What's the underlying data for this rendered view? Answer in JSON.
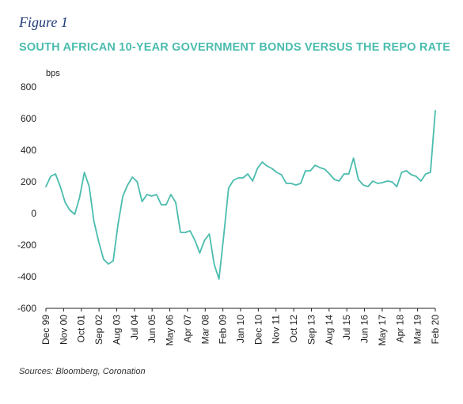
{
  "figure_label": "Figure 1",
  "source_note": "Sources: Bloomberg, Coronation",
  "colors": {
    "line": "#4bbcae",
    "title": "#4bbcae",
    "figure_label": "#1f3a7a",
    "axis": "#222222"
  },
  "chart_data": {
    "type": "line",
    "title": "SOUTH AFRICAN 10-YEAR GOVERNMENT BONDS VERSUS THE REPO RATE",
    "ylabel": "bps",
    "xlabel": "",
    "ylim": [
      -600,
      800
    ],
    "yticks": [
      800,
      600,
      400,
      200,
      0,
      -200,
      -400,
      -600
    ],
    "ytick_labels": [
      "800",
      "600",
      "400",
      "200",
      "0",
      "-200",
      "-400",
      "-600"
    ],
    "xticks": [
      "Dec 99",
      "Nov 00",
      "Oct 01",
      "Sep 02",
      "Aug 03",
      "Jul 04",
      "Jun 05",
      "May 06",
      "Apr 07",
      "Mar 08",
      "Feb 09",
      "Jan 10",
      "Dec 10",
      "Nov 11",
      "Oct 12",
      "Sep 13",
      "Aug 14",
      "Jul 15",
      "Jun 16",
      "May 17",
      "Apr 18",
      "Mar 19",
      "Feb 20"
    ],
    "grid": false,
    "legend": "none",
    "series": [
      {
        "x": [
          "1999-12",
          "2000-03",
          "2000-06",
          "2000-09",
          "2000-12",
          "2001-03",
          "2001-06",
          "2001-09",
          "2001-12",
          "2002-03",
          "2002-06",
          "2002-09",
          "2002-12",
          "2003-03",
          "2003-06",
          "2003-09",
          "2003-12",
          "2004-03",
          "2004-06",
          "2004-09",
          "2004-12",
          "2005-03",
          "2005-06",
          "2005-09",
          "2005-12",
          "2006-03",
          "2006-06",
          "2006-09",
          "2006-12",
          "2007-03",
          "2007-06",
          "2007-09",
          "2007-12",
          "2008-03",
          "2008-06",
          "2008-09",
          "2008-12",
          "2009-03",
          "2009-06",
          "2009-09",
          "2009-12",
          "2010-03",
          "2010-06",
          "2010-09",
          "2010-12",
          "2011-03",
          "2011-06",
          "2011-09",
          "2011-12",
          "2012-03",
          "2012-06",
          "2012-09",
          "2012-12",
          "2013-03",
          "2013-06",
          "2013-09",
          "2013-12",
          "2014-03",
          "2014-06",
          "2014-09",
          "2014-12",
          "2015-03",
          "2015-06",
          "2015-09",
          "2015-12",
          "2016-03",
          "2016-06",
          "2016-09",
          "2016-12",
          "2017-03",
          "2017-06",
          "2017-09",
          "2017-12",
          "2018-03",
          "2018-06",
          "2018-09",
          "2018-12",
          "2019-03",
          "2019-06",
          "2019-09",
          "2019-12",
          "2020-03"
        ],
        "values": [
          170,
          235,
          250,
          170,
          70,
          20,
          -5,
          100,
          260,
          170,
          -50,
          -180,
          -290,
          -320,
          -300,
          -70,
          110,
          180,
          230,
          200,
          75,
          120,
          110,
          120,
          55,
          55,
          120,
          70,
          -120,
          -120,
          -110,
          -170,
          -250,
          -170,
          -130,
          -320,
          -415,
          -140,
          160,
          210,
          225,
          225,
          250,
          205,
          285,
          325,
          300,
          285,
          260,
          245,
          190,
          190,
          180,
          190,
          270,
          270,
          305,
          290,
          280,
          250,
          215,
          205,
          250,
          250,
          350,
          215,
          180,
          170,
          205,
          190,
          195,
          205,
          200,
          170,
          260,
          270,
          245,
          235,
          205,
          250,
          260,
          650
        ]
      }
    ]
  }
}
